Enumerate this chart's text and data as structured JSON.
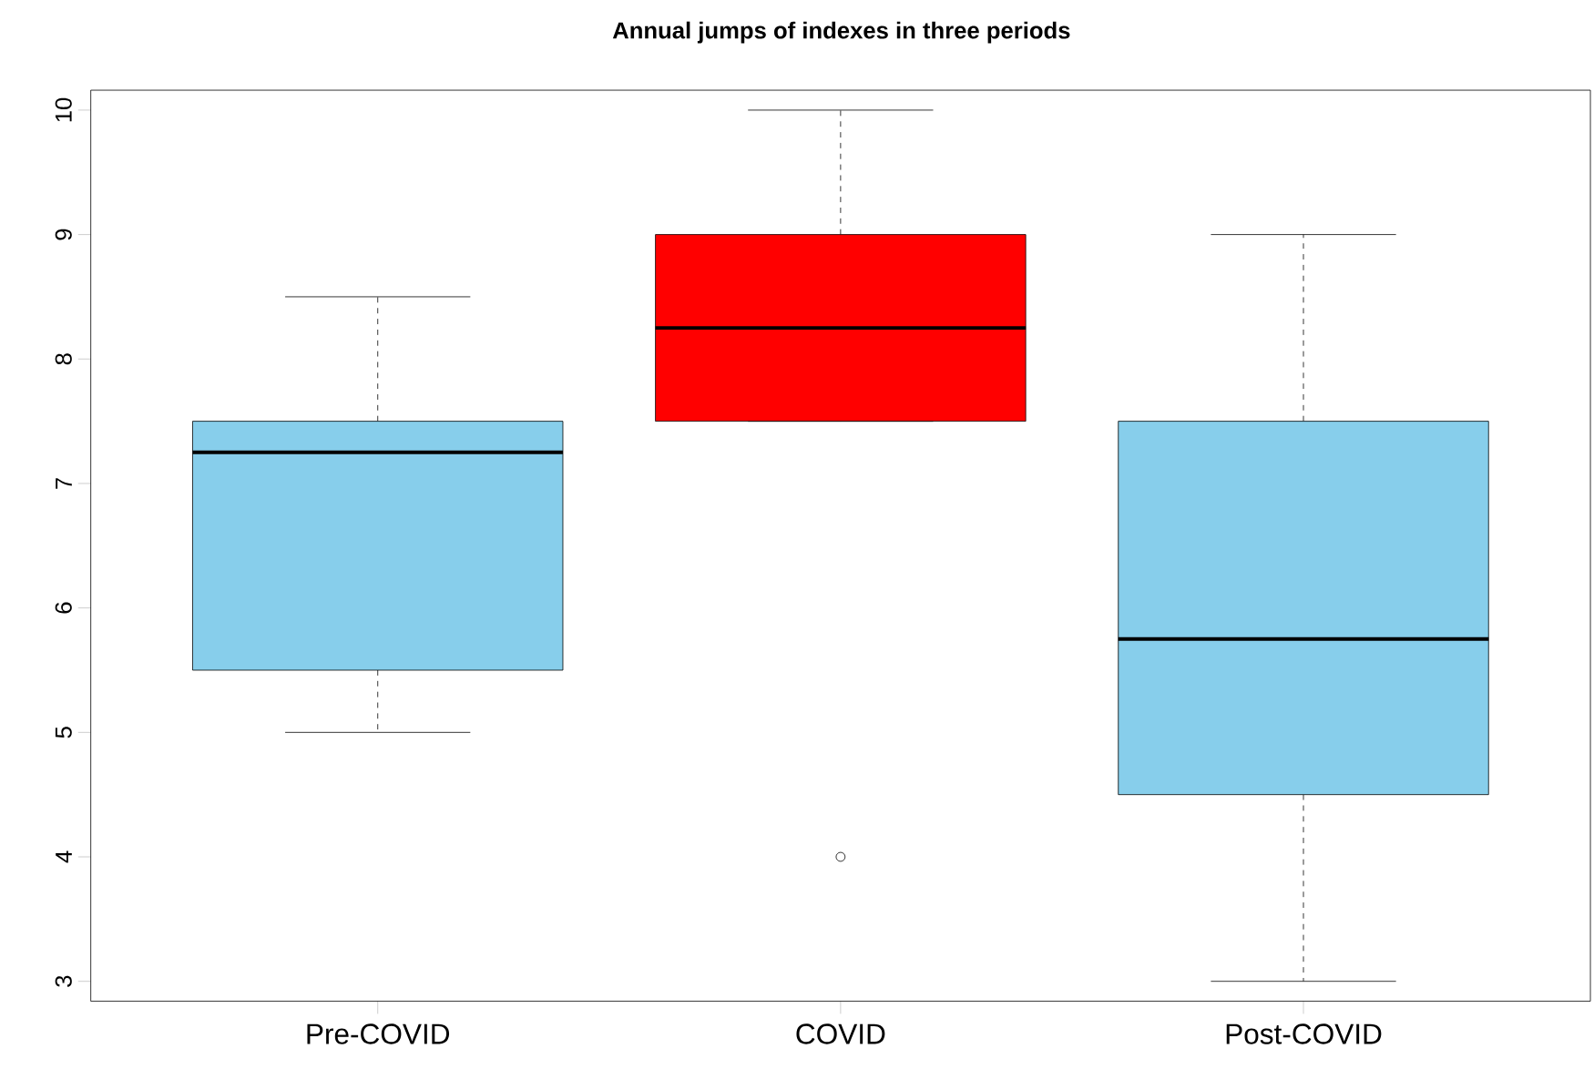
{
  "chart_data": {
    "type": "box",
    "title": "Annual jumps of indexes in three periods",
    "categories": [
      "Pre-COVID",
      "COVID",
      "Post-COVID"
    ],
    "colors": [
      "#87ceeb",
      "#ff0000",
      "#87ceeb"
    ],
    "boxes": [
      {
        "low": 5,
        "q1": 5.5,
        "median": 7.25,
        "q3": 7.5,
        "high": 8.5
      },
      {
        "low": 7.5,
        "q1": 7.5,
        "median": 8.25,
        "q3": 9,
        "high": 10,
        "outliers": [
          4
        ]
      },
      {
        "low": 3,
        "q1": 4.5,
        "median": 5.75,
        "q3": 7.5,
        "high": 9
      }
    ],
    "ylim": [
      2.84,
      10.16
    ],
    "yticks": [
      3,
      4,
      5,
      6,
      7,
      8,
      9,
      10
    ]
  }
}
